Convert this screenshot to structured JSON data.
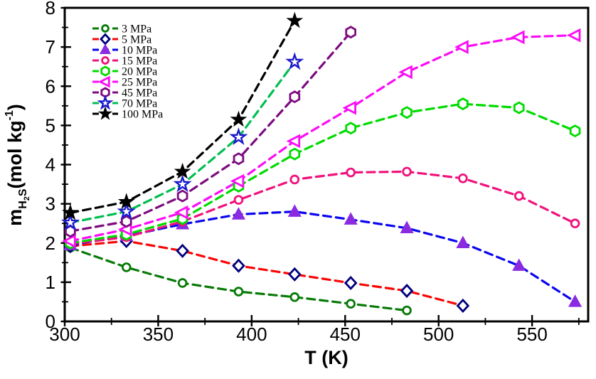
{
  "figure": {
    "background": "#ffffff"
  },
  "chart_data": {
    "type": "line",
    "title": "",
    "xlabel": "T (K)",
    "ylabel": "m_H2S (mol kg-1)",
    "ylabel_parts": [
      {
        "text": "m",
        "size": 27,
        "off": 0
      },
      {
        "text": "H",
        "size": 16,
        "off": 7
      },
      {
        "text": "2",
        "size": 11,
        "off": 11
      },
      {
        "text": "S",
        "size": 16,
        "off": 7
      },
      {
        "text": "(mol kg",
        "size": 27,
        "off": 0
      },
      {
        "text": "-1",
        "size": 16,
        "off": -12
      },
      {
        "text": ")",
        "size": 27,
        "off": 0
      }
    ],
    "xlim": [
      300,
      580
    ],
    "ylim": [
      0,
      8
    ],
    "x_major_ticks": [
      300,
      350,
      400,
      450,
      500,
      550
    ],
    "y_major_ticks": [
      0,
      1,
      2,
      3,
      4,
      5,
      6,
      7,
      8
    ],
    "x_minor_step": 25,
    "y_minor_step": 0.5,
    "grid": false,
    "legend_position": "top-left",
    "line_style": "dashed",
    "x": [
      303,
      333,
      363,
      393,
      423,
      453,
      483,
      513,
      543,
      573
    ],
    "series": [
      {
        "name": "3 MPa",
        "line_color": "#077A07",
        "marker": "circle",
        "marker_style": "open",
        "marker_color": "#077A07",
        "values": [
          1.88,
          1.38,
          0.98,
          0.76,
          0.62,
          0.45,
          0.28,
          null,
          null,
          null
        ]
      },
      {
        "name": "5 MPa",
        "line_color": "#F90606",
        "marker": "diamond",
        "marker_style": "open",
        "marker_color": "#00007D",
        "values": [
          1.92,
          2.05,
          1.8,
          1.42,
          1.2,
          0.98,
          0.78,
          0.4,
          null,
          null
        ]
      },
      {
        "name": "10 MPa",
        "line_color": "#0A06EE",
        "marker": "triangle-up",
        "marker_style": "filled",
        "marker_color": "#8A2BE2",
        "values": [
          1.95,
          2.18,
          2.48,
          2.73,
          2.8,
          2.6,
          2.38,
          2.0,
          1.42,
          0.5
        ]
      },
      {
        "name": "15 MPa",
        "line_color": "#F0117C",
        "marker": "circle",
        "marker_style": "open",
        "marker_color": "#F0117C",
        "values": [
          1.98,
          2.15,
          2.55,
          3.1,
          3.62,
          3.8,
          3.82,
          3.65,
          3.2,
          2.5
        ]
      },
      {
        "name": "20 MPa",
        "line_color": "#00DB00",
        "marker": "hexagon",
        "marker_style": "open",
        "marker_color": "#00DB00",
        "values": [
          2.0,
          2.22,
          2.62,
          3.45,
          4.27,
          4.93,
          5.33,
          5.55,
          5.45,
          4.86
        ]
      },
      {
        "name": "25 MPa",
        "line_color": "#FB0CF6",
        "marker": "triangle-left",
        "marker_style": "open",
        "marker_color": "#FB0CF6",
        "values": [
          2.05,
          2.35,
          2.78,
          3.58,
          4.6,
          5.45,
          6.36,
          7.0,
          7.25,
          7.3
        ]
      },
      {
        "name": "45 MPa",
        "line_color": "#7D0B80",
        "marker": "hexagon",
        "marker_style": "open",
        "marker_color": "#7D0B80",
        "values": [
          2.3,
          2.55,
          3.2,
          4.15,
          5.73,
          7.38,
          null,
          null,
          null,
          null
        ]
      },
      {
        "name": "70 MPa",
        "line_color": "#00BE50",
        "marker": "star",
        "marker_style": "open",
        "marker_color": "#1A1ACD",
        "values": [
          2.52,
          2.8,
          3.5,
          4.7,
          6.62,
          null,
          null,
          null,
          null,
          null
        ]
      },
      {
        "name": "100 MPa",
        "line_color": "#000000",
        "marker": "star",
        "marker_style": "filled",
        "marker_color": "#000000",
        "values": [
          2.77,
          3.05,
          3.82,
          5.15,
          7.67,
          null,
          null,
          null,
          null,
          null
        ]
      }
    ]
  }
}
